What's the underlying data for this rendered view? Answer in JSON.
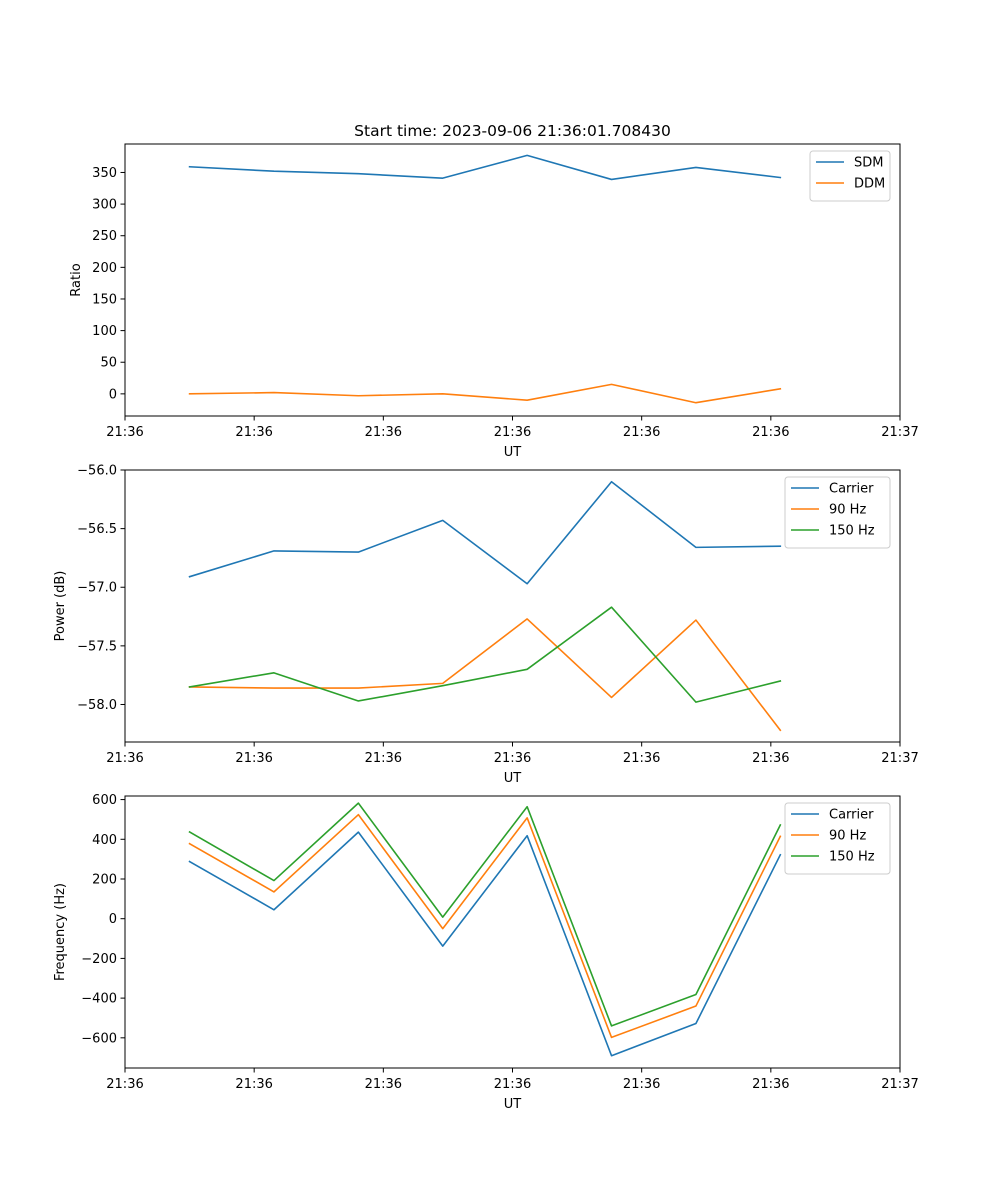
{
  "chart_data": [
    {
      "type": "line",
      "title": "Start time: 2023-09-06 21:36:01.708430",
      "xlabel": "UT",
      "ylabel": "Ratio",
      "xlim": [
        0,
        9
      ],
      "ylim": [
        -35,
        395
      ],
      "x_ticks": [
        {
          "value": 0,
          "label": "21:36"
        },
        {
          "value": 1.5,
          "label": "21:36"
        },
        {
          "value": 3,
          "label": "21:36"
        },
        {
          "value": 4.5,
          "label": "21:36"
        },
        {
          "value": 6,
          "label": "21:36"
        },
        {
          "value": 7.5,
          "label": "21:36"
        },
        {
          "value": 9,
          "label": "21:37"
        }
      ],
      "y_ticks": [
        0,
        50,
        100,
        150,
        200,
        250,
        300,
        350
      ],
      "x": [
        0.75,
        1.73,
        2.71,
        3.69,
        4.67,
        5.65,
        6.63,
        7.61
      ],
      "series": [
        {
          "name": "SDM",
          "color": "#1f77b4",
          "values": [
            359,
            352,
            348,
            341,
            377,
            339,
            358,
            342
          ]
        },
        {
          "name": "DDM",
          "color": "#ff7f0e",
          "values": [
            0,
            2,
            -3,
            0,
            -10,
            15,
            -14,
            8
          ]
        }
      ],
      "legend": "upper right"
    },
    {
      "type": "line",
      "title": "",
      "xlabel": "UT",
      "ylabel": "Power (dB)",
      "xlim": [
        0,
        9
      ],
      "ylim": [
        -58.32,
        -56.0
      ],
      "x_ticks": [
        {
          "value": 0,
          "label": "21:36"
        },
        {
          "value": 1.5,
          "label": "21:36"
        },
        {
          "value": 3,
          "label": "21:36"
        },
        {
          "value": 4.5,
          "label": "21:36"
        },
        {
          "value": 6,
          "label": "21:36"
        },
        {
          "value": 7.5,
          "label": "21:36"
        },
        {
          "value": 9,
          "label": "21:37"
        }
      ],
      "y_ticks": [
        -58.0,
        -57.5,
        -57.0,
        -56.5,
        -56.0
      ],
      "y_tick_labels": [
        "−58.0",
        "−57.5",
        "−57.0",
        "−56.5",
        "−56.0"
      ],
      "x": [
        0.75,
        1.73,
        2.71,
        3.69,
        4.67,
        5.65,
        6.63,
        7.61
      ],
      "series": [
        {
          "name": "Carrier",
          "color": "#1f77b4",
          "values": [
            -56.91,
            -56.69,
            -56.7,
            -56.43,
            -56.97,
            -56.1,
            -56.66,
            -56.65
          ]
        },
        {
          "name": "90 Hz",
          "color": "#ff7f0e",
          "values": [
            -57.85,
            -57.86,
            -57.86,
            -57.82,
            -57.27,
            -57.94,
            -57.28,
            -58.22
          ]
        },
        {
          "name": "150 Hz",
          "color": "#2ca02c",
          "values": [
            -57.85,
            -57.73,
            -57.97,
            -57.84,
            -57.7,
            -57.17,
            -57.98,
            -57.8
          ]
        }
      ],
      "legend": "upper right"
    },
    {
      "type": "line",
      "title": "",
      "xlabel": "UT",
      "ylabel": "Frequency (Hz)",
      "xlim": [
        0,
        9
      ],
      "ylim": [
        -752,
        618
      ],
      "x_ticks": [
        {
          "value": 0,
          "label": "21:36"
        },
        {
          "value": 1.5,
          "label": "21:36"
        },
        {
          "value": 3,
          "label": "21:36"
        },
        {
          "value": 4.5,
          "label": "21:36"
        },
        {
          "value": 6,
          "label": "21:36"
        },
        {
          "value": 7.5,
          "label": "21:36"
        },
        {
          "value": 9,
          "label": "21:37"
        }
      ],
      "y_ticks": [
        -600,
        -400,
        -200,
        0,
        200,
        400,
        600
      ],
      "y_tick_labels": [
        "−600",
        "−400",
        "−200",
        "0",
        "200",
        "400",
        "600"
      ],
      "x": [
        0.75,
        1.73,
        2.71,
        3.69,
        4.67,
        5.65,
        6.63,
        7.61
      ],
      "series": [
        {
          "name": "Carrier",
          "color": "#1f77b4",
          "values": [
            288,
            45,
            436,
            -138,
            418,
            -690,
            -528,
            322
          ]
        },
        {
          "name": "90 Hz",
          "color": "#ff7f0e",
          "values": [
            378,
            135,
            524,
            -50,
            508,
            -598,
            -440,
            415
          ]
        },
        {
          "name": "150 Hz",
          "color": "#2ca02c",
          "values": [
            437,
            192,
            582,
            8,
            564,
            -540,
            -382,
            472
          ]
        }
      ],
      "legend": "upper right"
    }
  ]
}
